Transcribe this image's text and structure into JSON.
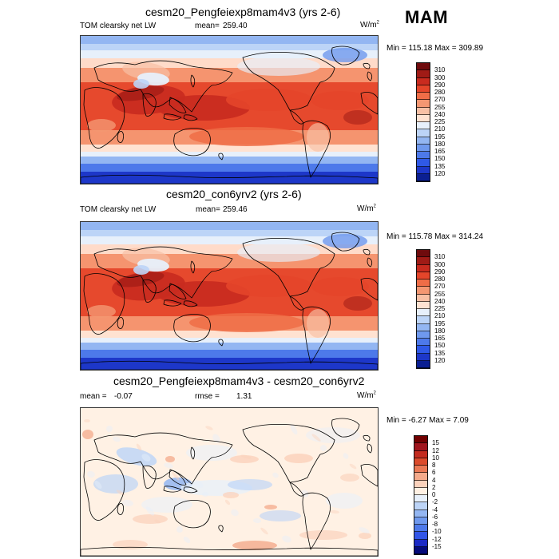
{
  "chart_data": [
    {
      "type": "heatmap",
      "title": "cesm20_Pengfeiexp8mam4v3 (yrs 2-6)",
      "variable": "TOM clearsky net LW",
      "mean_label": "mean=",
      "mean_value": "259.40",
      "units": "W/m",
      "units_superscript": "2",
      "min_label": "Min = 115.18 Max = 309.89",
      "colorbar_levels": [
        120,
        135,
        150,
        165,
        180,
        195,
        210,
        225,
        240,
        255,
        270,
        280,
        290,
        300,
        310
      ],
      "colorbar_colors": [
        "#0b1f92",
        "#1d37c9",
        "#2f59e7",
        "#4d79ea",
        "#6f99ee",
        "#93b6f2",
        "#bcd4f7",
        "#e7f0fb",
        "#ffe2d1",
        "#f8c0a5",
        "#f49772",
        "#ef6d47",
        "#e4452a",
        "#c92b1f",
        "#a01b16",
        "#6f0b0d"
      ],
      "map_style": "control"
    },
    {
      "type": "heatmap",
      "title": "cesm20_con6yrv2 (yrs 2-6)",
      "variable": "TOM clearsky net LW",
      "mean_label": "mean=",
      "mean_value": "259.46",
      "units": "W/m",
      "units_superscript": "2",
      "min_label": "Min = 115.78 Max = 314.24",
      "colorbar_levels": [
        120,
        135,
        150,
        165,
        180,
        195,
        210,
        225,
        240,
        255,
        270,
        280,
        290,
        300,
        310
      ],
      "colorbar_colors": [
        "#0b1f92",
        "#1d37c9",
        "#2f59e7",
        "#4d79ea",
        "#6f99ee",
        "#93b6f2",
        "#bcd4f7",
        "#e7f0fb",
        "#ffe2d1",
        "#f8c0a5",
        "#f49772",
        "#ef6d47",
        "#e4452a",
        "#c92b1f",
        "#a01b16",
        "#6f0b0d"
      ],
      "map_style": "control"
    },
    {
      "type": "heatmap",
      "title": "cesm20_Pengfeiexp8mam4v3 - cesm20_con6yrv2",
      "mean_label": "mean =",
      "mean_value": "-0.07",
      "rmse_label": "rmse =",
      "rmse_value": "1.31",
      "units": "W/m",
      "units_superscript": "2",
      "min_label": "Min =  -6.27 Max =   7.09",
      "colorbar_levels": [
        -15,
        -12,
        -10,
        -8,
        -6,
        -4,
        -2,
        0,
        2,
        4,
        6,
        8,
        10,
        12,
        15
      ],
      "colorbar_colors": [
        "#050b7a",
        "#1b2ac5",
        "#3256e8",
        "#4d79ea",
        "#6f99ee",
        "#93b6f2",
        "#bcd4f7",
        "#e7f0fb",
        "#fff1e4",
        "#fbd2bc",
        "#f4aa8b",
        "#ea7955",
        "#db4b2c",
        "#c32b1f",
        "#a0151d",
        "#710000"
      ],
      "map_style": "difference"
    }
  ],
  "season": "MAM",
  "colors": {
    "background": "#ffffff",
    "border": "#111111",
    "coastline": "#000000"
  }
}
